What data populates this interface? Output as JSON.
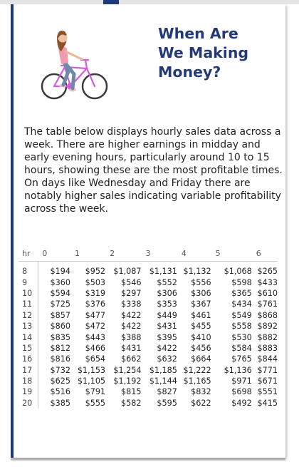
{
  "header": {
    "title_lines": [
      "When Are",
      "We Making",
      "Money?"
    ]
  },
  "description_lines": [
    "The table below displays hourly sales data across a",
    "week. There are higher earnings in midday and",
    "early evening hours, particularly around 10 to 15",
    "hours, showing these are the most profitable times.",
    "On days like Wednesday and Friday there are",
    "notably higher sales indicating variable profitability",
    "across the week."
  ],
  "table": {
    "headers": [
      "hr",
      "0",
      "1",
      "2",
      "3",
      "4",
      "5",
      "6"
    ],
    "rows": [
      [
        "8",
        "$194",
        "$952",
        "$1,087",
        "$1,131",
        "$1,132",
        "$1,068",
        "$265"
      ],
      [
        "9",
        "$360",
        "$503",
        "$546",
        "$552",
        "$556",
        "$598",
        "$433"
      ],
      [
        "10",
        "$594",
        "$319",
        "$297",
        "$306",
        "$306",
        "$365",
        "$610"
      ],
      [
        "11",
        "$725",
        "$376",
        "$338",
        "$353",
        "$367",
        "$434",
        "$761"
      ],
      [
        "12",
        "$857",
        "$477",
        "$422",
        "$449",
        "$461",
        "$549",
        "$868"
      ],
      [
        "13",
        "$860",
        "$472",
        "$422",
        "$431",
        "$455",
        "$558",
        "$892"
      ],
      [
        "14",
        "$835",
        "$443",
        "$388",
        "$395",
        "$410",
        "$530",
        "$882"
      ],
      [
        "15",
        "$812",
        "$466",
        "$431",
        "$422",
        "$456",
        "$584",
        "$883"
      ],
      [
        "16",
        "$816",
        "$654",
        "$662",
        "$632",
        "$664",
        "$765",
        "$844"
      ],
      [
        "17",
        "$732",
        "$1,153",
        "$1,254",
        "$1,185",
        "$1,222",
        "$1,136",
        "$771"
      ],
      [
        "18",
        "$625",
        "$1,105",
        "$1,192",
        "$1,144",
        "$1,165",
        "$971",
        "$671"
      ],
      [
        "19",
        "$516",
        "$791",
        "$815",
        "$827",
        "$832",
        "$698",
        "$551"
      ],
      [
        "20",
        "$385",
        "$555",
        "$582",
        "$595",
        "$622",
        "$492",
        "$415"
      ]
    ]
  },
  "colors": {
    "title": "#243a78",
    "accent_border": "#1f3a7a",
    "bike_frame": "#d35bd8",
    "shirt": "#f29bb0",
    "jeans": "#6f89a8",
    "hair": "#8a5226"
  },
  "icons": {
    "illustration": "woman-riding-bicycle-illustration"
  }
}
